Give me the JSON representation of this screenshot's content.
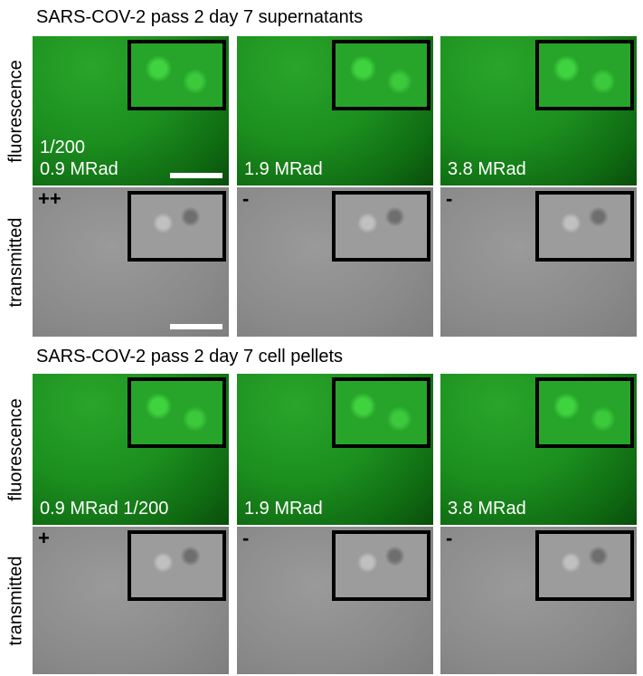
{
  "sections": [
    {
      "title": "SARS-COV-2 pass 2 day 7 supernatants",
      "rows": [
        {
          "label": "fluorescence",
          "panels": [
            {
              "labels": [
                "1/200",
                "0.9 MRad"
              ]
            },
            {
              "labels": [
                "1.9 MRad"
              ]
            },
            {
              "labels": [
                "3.8 MRad"
              ]
            }
          ]
        },
        {
          "label": "transmitted",
          "panels": [
            {
              "labels": [
                "++"
              ]
            },
            {
              "labels": [
                "-"
              ]
            },
            {
              "labels": [
                "-"
              ]
            }
          ]
        }
      ]
    },
    {
      "title": "SARS-COV-2 pass 2 day 7 cell pellets",
      "rows": [
        {
          "label": "fluorescence",
          "panels": [
            {
              "labels": [
                "0.9 MRad 1/200"
              ]
            },
            {
              "labels": [
                "1.9 MRad"
              ]
            },
            {
              "labels": [
                "3.8 MRad"
              ]
            }
          ]
        },
        {
          "label": "transmitted",
          "panels": [
            {
              "labels": [
                "+"
              ]
            },
            {
              "labels": [
                "-"
              ]
            },
            {
              "labels": [
                "-"
              ]
            }
          ]
        }
      ]
    }
  ]
}
